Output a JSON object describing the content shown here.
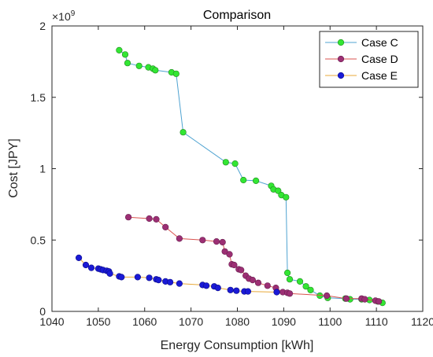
{
  "chart_data": {
    "type": "scatter",
    "title": "Comparison",
    "xlabel": "Energy Consumption [kWh]",
    "ylabel": "Cost [JPY]",
    "y_exponent_label": "×10",
    "y_exponent_power": "9",
    "xlim": [
      1040,
      1120
    ],
    "ylim": [
      0,
      2
    ],
    "xticks": [
      1040,
      1050,
      1060,
      1070,
      1080,
      1090,
      1100,
      1110,
      1120
    ],
    "yticks": [
      0,
      0.5,
      1,
      1.5,
      2
    ],
    "ytick_labels": [
      "0",
      "0.5",
      "1",
      "1.5",
      "2"
    ],
    "grid": false,
    "legend_position": "top-right",
    "series": [
      {
        "name": "Case C",
        "line_color": "#4fa3d1",
        "marker_color": "#33e633",
        "marker_edge": "#1f8a1f",
        "x": [
          1054.5,
          1055.8,
          1056.3,
          1058.8,
          1060.8,
          1061.8,
          1062.3,
          1065.8,
          1066.8,
          1068.3,
          1077.5,
          1079.5,
          1081.3,
          1084.0,
          1087.3,
          1087.8,
          1088.8,
          1089.5,
          1090.5,
          1090.8,
          1091.3,
          1093.5,
          1094.8,
          1095.8,
          1097.8,
          1099.5,
          1103.3,
          1104.3,
          1106.8,
          1108.5,
          1110.3,
          1111.3
        ],
        "y": [
          1.83,
          1.8,
          1.74,
          1.72,
          1.71,
          1.7,
          1.69,
          1.675,
          1.665,
          1.255,
          1.045,
          1.035,
          0.92,
          0.915,
          0.88,
          0.855,
          0.845,
          0.815,
          0.8,
          0.27,
          0.225,
          0.21,
          0.175,
          0.15,
          0.11,
          0.095,
          0.09,
          0.085,
          0.085,
          0.08,
          0.07,
          0.06
        ]
      },
      {
        "name": "Case D",
        "line_color": "#d9534f",
        "marker_color": "#9c2f74",
        "marker_edge": "#6a1f4f",
        "x": [
          1056.5,
          1061.0,
          1062.5,
          1064.5,
          1067.5,
          1072.5,
          1075.5,
          1076.8,
          1077.3,
          1078.3,
          1078.8,
          1079.3,
          1080.3,
          1080.8,
          1081.8,
          1082.5,
          1083.3,
          1084.5,
          1086.5,
          1088.3,
          1089.8,
          1090.8,
          1091.3,
          1099.3,
          1103.5,
          1106.8,
          1107.5,
          1109.8,
          1110.5
        ],
        "y": [
          0.66,
          0.65,
          0.645,
          0.59,
          0.51,
          0.5,
          0.49,
          0.485,
          0.42,
          0.4,
          0.33,
          0.325,
          0.295,
          0.29,
          0.25,
          0.23,
          0.22,
          0.2,
          0.18,
          0.165,
          0.135,
          0.13,
          0.125,
          0.11,
          0.09,
          0.09,
          0.085,
          0.075,
          0.07
        ]
      },
      {
        "name": "Case E",
        "line_color": "#e8a93a",
        "marker_color": "#1a1ad6",
        "marker_edge": "#0d0d8a",
        "x": [
          1045.8,
          1047.3,
          1048.5,
          1050.0,
          1050.5,
          1051.0,
          1051.8,
          1052.3,
          1052.5,
          1054.5,
          1055.0,
          1058.5,
          1061.0,
          1062.5,
          1063.0,
          1064.5,
          1065.5,
          1067.5,
          1072.5,
          1073.3,
          1075.0,
          1075.8,
          1078.5,
          1079.8,
          1081.5,
          1082.3,
          1088.5
        ],
        "y": [
          0.375,
          0.325,
          0.305,
          0.3,
          0.295,
          0.29,
          0.285,
          0.28,
          0.265,
          0.245,
          0.24,
          0.24,
          0.235,
          0.225,
          0.22,
          0.21,
          0.205,
          0.195,
          0.185,
          0.18,
          0.175,
          0.165,
          0.15,
          0.145,
          0.14,
          0.14,
          0.135
        ]
      }
    ]
  }
}
